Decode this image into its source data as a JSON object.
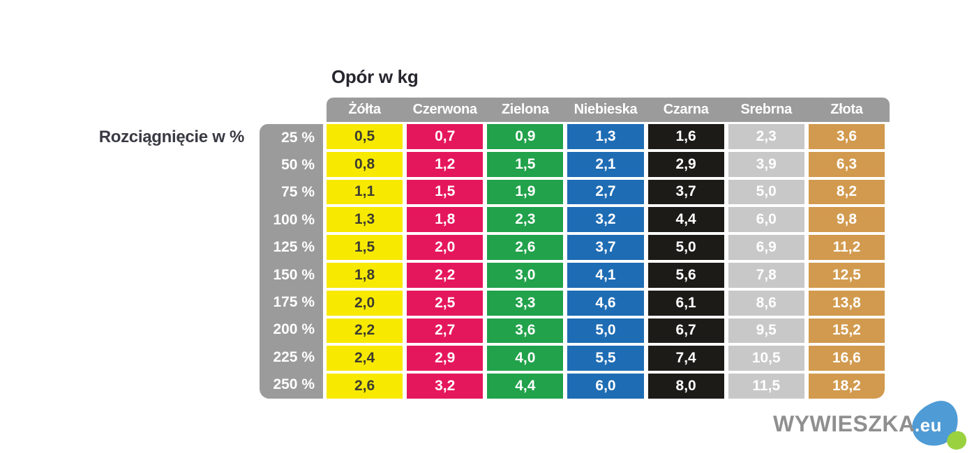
{
  "title": "Opór w kg",
  "row_axis_label": "Rozciągnięcie w %",
  "table": {
    "header_bg": "#9b9b9b",
    "header_fg": "#ffffff",
    "columns": [
      {
        "name": "Żółta",
        "bg": "#f8e900",
        "fg": "#3c3c30"
      },
      {
        "name": "Czerwona",
        "bg": "#e5175c",
        "fg": "#ffffff"
      },
      {
        "name": "Zielona",
        "bg": "#21a24b",
        "fg": "#ffffff"
      },
      {
        "name": "Niebieska",
        "bg": "#1e6cb4",
        "fg": "#ffffff"
      },
      {
        "name": "Czarna",
        "bg": "#1d1b18",
        "fg": "#ffffff"
      },
      {
        "name": "Srebrna",
        "bg": "#c8c8c8",
        "fg": "#ffffff"
      },
      {
        "name": "Złota",
        "bg": "#d29a4e",
        "fg": "#ffffff"
      }
    ],
    "rows": [
      {
        "stretch": "25 %",
        "values": [
          "0,5",
          "0,7",
          "0,9",
          "1,3",
          "1,6",
          "2,3",
          "3,6"
        ]
      },
      {
        "stretch": "50 %",
        "values": [
          "0,8",
          "1,2",
          "1,5",
          "2,1",
          "2,9",
          "3,9",
          "6,3"
        ]
      },
      {
        "stretch": "75 %",
        "values": [
          "1,1",
          "1,5",
          "1,9",
          "2,7",
          "3,7",
          "5,0",
          "8,2"
        ]
      },
      {
        "stretch": "100 %",
        "values": [
          "1,3",
          "1,8",
          "2,3",
          "3,2",
          "4,4",
          "6,0",
          "9,8"
        ]
      },
      {
        "stretch": "125 %",
        "values": [
          "1,5",
          "2,0",
          "2,6",
          "3,7",
          "5,0",
          "6,9",
          "11,2"
        ]
      },
      {
        "stretch": "150 %",
        "values": [
          "1,8",
          "2,2",
          "3,0",
          "4,1",
          "5,6",
          "7,8",
          "12,5"
        ]
      },
      {
        "stretch": "175 %",
        "values": [
          "2,0",
          "2,5",
          "3,3",
          "4,6",
          "6,1",
          "8,6",
          "13,8"
        ]
      },
      {
        "stretch": "200 %",
        "values": [
          "2,2",
          "2,7",
          "3,6",
          "5,0",
          "6,7",
          "9,5",
          "15,2"
        ]
      },
      {
        "stretch": "225 %",
        "values": [
          "2,4",
          "2,9",
          "4,0",
          "5,5",
          "7,4",
          "10,5",
          "16,6"
        ]
      },
      {
        "stretch": "250 %",
        "values": [
          "2,6",
          "3,2",
          "4,4",
          "6,0",
          "8,0",
          "11,5",
          "18,2"
        ]
      }
    ]
  },
  "watermark": {
    "name": "WYWIESZKA",
    "tld": ".eu",
    "text_color": "#8f8f8f",
    "blue": "#4f9bd5",
    "green": "#9ad13f"
  },
  "chart_data": {
    "type": "table",
    "title": "Opór w kg",
    "row_axis_label": "Rozciągnięcie w %",
    "columns": [
      "Żółta",
      "Czerwona",
      "Zielona",
      "Niebieska",
      "Czarna",
      "Srebrna",
      "Złota"
    ],
    "rows": [
      "25 %",
      "50 %",
      "75 %",
      "100 %",
      "125 %",
      "150 %",
      "175 %",
      "200 %",
      "225 %",
      "250 %"
    ],
    "values_kg": [
      [
        0.5,
        0.7,
        0.9,
        1.3,
        1.6,
        2.3,
        3.6
      ],
      [
        0.8,
        1.2,
        1.5,
        2.1,
        2.9,
        3.9,
        6.3
      ],
      [
        1.1,
        1.5,
        1.9,
        2.7,
        3.7,
        5.0,
        8.2
      ],
      [
        1.3,
        1.8,
        2.3,
        3.2,
        4.4,
        6.0,
        9.8
      ],
      [
        1.5,
        2.0,
        2.6,
        3.7,
        5.0,
        6.9,
        11.2
      ],
      [
        1.8,
        2.2,
        3.0,
        4.1,
        5.6,
        7.8,
        12.5
      ],
      [
        2.0,
        2.5,
        3.3,
        4.6,
        6.1,
        8.6,
        13.8
      ],
      [
        2.2,
        2.7,
        3.6,
        5.0,
        6.7,
        9.5,
        15.2
      ],
      [
        2.4,
        2.9,
        4.0,
        5.5,
        7.4,
        10.5,
        16.6
      ],
      [
        2.6,
        3.2,
        4.4,
        6.0,
        8.0,
        11.5,
        18.2
      ]
    ],
    "column_colors": [
      "#f8e900",
      "#e5175c",
      "#21a24b",
      "#1e6cb4",
      "#1d1b18",
      "#c8c8c8",
      "#d29a4e"
    ],
    "legend_position": "top",
    "grid": false
  }
}
